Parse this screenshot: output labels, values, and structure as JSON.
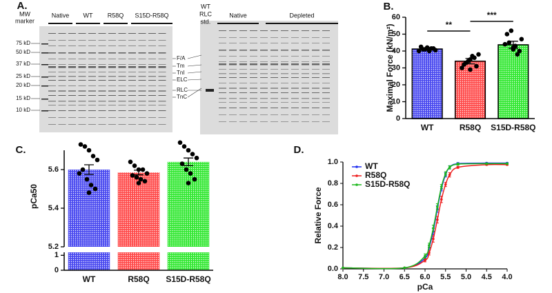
{
  "gel": {
    "label": "A.",
    "mw_header": [
      "MW",
      "marker"
    ],
    "mw_ladder": [
      "75 kD",
      "50 kD",
      "37 kD",
      "25 kD",
      "20 kD",
      "15 kD",
      "10 kD"
    ],
    "lanes_left": [
      "Native",
      "WT",
      "R58Q",
      "S15D-R58Q"
    ],
    "proteins": [
      "F/A",
      "Tm",
      "TnI",
      "ELC",
      "RLC",
      "TnC"
    ],
    "std": [
      "WT",
      "RLC",
      "std."
    ],
    "lanes_right": [
      "Native",
      "Depleted"
    ]
  },
  "chart_data": [
    {
      "type": "bar",
      "label": "B.",
      "ylabel": "Maximal Force (kN/m²)",
      "categories": [
        "WT",
        "R58Q",
        "S15D-R58Q"
      ],
      "values": [
        41.2,
        34,
        43.7
      ],
      "errors": [
        0.7,
        1.6,
        2.1
      ],
      "colors": [
        "#4b4bf0",
        "#ff4b4b",
        "#33e833"
      ],
      "points": [
        [
          40,
          41,
          42,
          41.5,
          40.5,
          42.5,
          41,
          40,
          41.5,
          42
        ],
        [
          30,
          33,
          35,
          36,
          38,
          32,
          34,
          37,
          31,
          29
        ],
        [
          44,
          45,
          41,
          38,
          47,
          50,
          52,
          43,
          40,
          42
        ]
      ],
      "annotations": [
        "**",
        "***"
      ],
      "ylim": [
        0,
        60
      ],
      "yticks": [
        0,
        10,
        20,
        30,
        40,
        50,
        60
      ]
    },
    {
      "type": "bar",
      "label": "C.",
      "ylabel": "pCa50",
      "categories": [
        "WT",
        "R58Q",
        "S15D-R58Q"
      ],
      "values": [
        5.6,
        5.585,
        5.64
      ],
      "errors": [
        0.025,
        0.012,
        0.02
      ],
      "colors": [
        "#4b4bf0",
        "#ff4b4b",
        "#33e833"
      ],
      "points": [
        [
          5.73,
          5.72,
          5.7,
          5.67,
          5.65,
          5.6,
          5.55,
          5.52,
          5.5,
          5.48,
          5.58
        ],
        [
          5.64,
          5.62,
          5.6,
          5.6,
          5.58,
          5.57,
          5.56,
          5.55,
          5.54,
          5.53
        ],
        [
          5.74,
          5.72,
          5.7,
          5.68,
          5.66,
          5.63,
          5.6,
          5.58,
          5.55,
          5.53
        ]
      ],
      "ylim": [
        5.2,
        5.7
      ],
      "yticks": [
        5.2,
        5.4,
        5.6
      ],
      "lower_ylim": [
        0,
        1.2
      ],
      "lower_yticks": [
        0,
        1
      ]
    },
    {
      "type": "line",
      "label": "D.",
      "xlabel": "pCa",
      "ylabel": "Relative Force",
      "x": [
        8.0,
        6.5,
        6.0,
        5.9,
        5.8,
        5.7,
        5.6,
        5.5,
        5.4,
        5.2,
        4.5,
        4.0
      ],
      "series": [
        {
          "name": "WT",
          "color": "#1f2ff0",
          "values": [
            0.01,
            0.01,
            0.1,
            0.2,
            0.35,
            0.56,
            0.75,
            0.88,
            0.95,
            0.985,
            0.99,
            0.99
          ],
          "errors": [
            0,
            0,
            0.02,
            0.02,
            0.03,
            0.03,
            0.02,
            0.02,
            0.015,
            0.01,
            0.005,
            0.005
          ]
        },
        {
          "name": "R58Q",
          "color": "#ee1c1c",
          "values": [
            0.01,
            0.01,
            0.08,
            0.15,
            0.28,
            0.46,
            0.65,
            0.79,
            0.88,
            0.95,
            0.975,
            0.975
          ],
          "errors": [
            0,
            0,
            0.015,
            0.02,
            0.03,
            0.03,
            0.03,
            0.02,
            0.02,
            0.01,
            0.005,
            0.005
          ]
        },
        {
          "name": "S15D-R58Q",
          "color": "#1db81d",
          "values": [
            0.01,
            0.01,
            0.12,
            0.22,
            0.38,
            0.58,
            0.77,
            0.89,
            0.95,
            0.98,
            0.985,
            0.985
          ],
          "errors": [
            0,
            0,
            0.02,
            0.02,
            0.03,
            0.03,
            0.02,
            0.02,
            0.015,
            0.01,
            0.005,
            0.005
          ]
        }
      ],
      "xlim": [
        8,
        4
      ],
      "xticks": [
        {
          "value": 8,
          "label": "8.0"
        },
        {
          "value": 7.5,
          "label": "7.5"
        },
        {
          "value": 7,
          "label": "7.0"
        },
        {
          "value": 6.5,
          "label": "6.5"
        },
        {
          "value": 6,
          "label": "6.0"
        },
        {
          "value": 5.5,
          "label": "5.5"
        },
        {
          "value": 5,
          "label": "5.0"
        },
        {
          "value": 4.5,
          "label": "4.5"
        },
        {
          "value": 4,
          "label": "4.0"
        }
      ],
      "ylim": [
        0,
        1
      ],
      "yticks": [
        {
          "value": 0,
          "label": "0.0"
        },
        {
          "value": 0.2,
          "label": "0.2"
        },
        {
          "value": 0.4,
          "label": "0.4"
        },
        {
          "value": 0.6,
          "label": "0.6"
        },
        {
          "value": 0.8,
          "label": "0.8"
        },
        {
          "value": 1,
          "label": "1.0"
        }
      ],
      "legend": "upper left"
    }
  ]
}
